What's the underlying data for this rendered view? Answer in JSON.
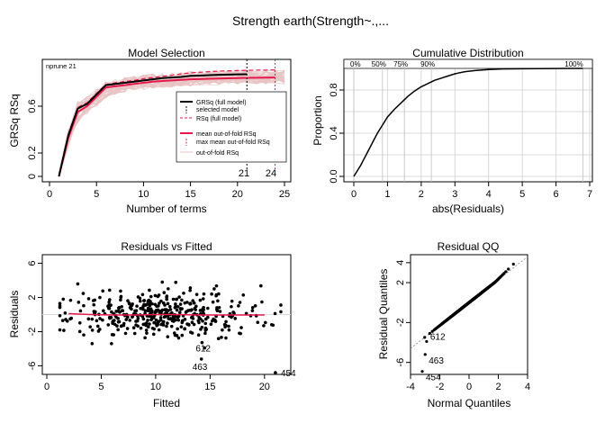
{
  "figure": {
    "main_title": "Strength     earth(Strength~.,..."
  },
  "colors": {
    "pink_band": "#e8c4c4",
    "red": "#e6194b",
    "grid": "#d9d9d9",
    "black": "#000000"
  },
  "chart_data": [
    {
      "type": "line",
      "id": "model-selection",
      "title": "Model Selection",
      "xlabel": "Number of terms",
      "ylabel": "GRSq   RSq",
      "xlim": [
        0,
        25
      ],
      "ylim": [
        0,
        1
      ],
      "xticks": [
        0,
        5,
        10,
        15,
        20,
        25
      ],
      "yticks": [
        0,
        0.2,
        0.6
      ],
      "ytick_labels": [
        "0",
        "0.2",
        "0.6"
      ],
      "annotation": "nprune 21",
      "selected_terms": 21,
      "max_oof_terms": 24,
      "selected_label": "21",
      "max_oof_label": "24",
      "legend": {
        "entries": [
          "GRSq (full model)",
          "selected model",
          "RSq (full model)",
          "mean out-of-fold RSq",
          "max mean out-of-fold RSq",
          "out-of-fold RSq"
        ],
        "placement": "center-right"
      },
      "series": [
        {
          "name": "GRSq (full model)",
          "x": [
            1,
            2,
            3,
            4,
            5,
            6,
            7,
            8,
            9,
            10,
            11,
            12,
            13,
            14,
            15,
            16,
            17,
            18,
            19,
            20,
            21
          ],
          "values": [
            0.0,
            0.35,
            0.58,
            0.62,
            0.7,
            0.78,
            0.79,
            0.8,
            0.81,
            0.82,
            0.83,
            0.84,
            0.845,
            0.85,
            0.86,
            0.862,
            0.865,
            0.868,
            0.87,
            0.872,
            0.873
          ]
        },
        {
          "name": "RSq (full model)",
          "x": [
            1,
            2,
            3,
            4,
            5,
            6,
            7,
            8,
            9,
            10,
            11,
            12,
            13,
            14,
            15,
            16,
            17,
            18,
            19,
            20,
            21,
            22,
            23,
            24
          ],
          "values": [
            0.0,
            0.36,
            0.59,
            0.63,
            0.71,
            0.785,
            0.8,
            0.81,
            0.82,
            0.835,
            0.845,
            0.855,
            0.865,
            0.875,
            0.885,
            0.89,
            0.895,
            0.9,
            0.902,
            0.905,
            0.907,
            0.908,
            0.909,
            0.91
          ]
        },
        {
          "name": "mean out-of-fold RSq",
          "x": [
            1,
            2,
            3,
            4,
            5,
            6,
            7,
            8,
            9,
            10,
            11,
            12,
            13,
            14,
            15,
            16,
            17,
            18,
            19,
            20,
            21,
            22,
            23,
            24
          ],
          "values": [
            0.0,
            0.33,
            0.55,
            0.6,
            0.68,
            0.76,
            0.77,
            0.78,
            0.79,
            0.8,
            0.81,
            0.815,
            0.82,
            0.825,
            0.83,
            0.832,
            0.835,
            0.837,
            0.838,
            0.84,
            0.842,
            0.843,
            0.844,
            0.845
          ]
        }
      ],
      "band": {
        "name": "out-of-fold RSq",
        "x": [
          1,
          2,
          3,
          4,
          5,
          6,
          7,
          8,
          9,
          10,
          11,
          12,
          13,
          14,
          15,
          16,
          17,
          18,
          19,
          20,
          21,
          22,
          23,
          24,
          25
        ],
        "lower": [
          -0.02,
          0.2,
          0.4,
          0.48,
          0.55,
          0.62,
          0.66,
          0.68,
          0.69,
          0.7,
          0.71,
          0.72,
          0.72,
          0.73,
          0.73,
          0.74,
          0.74,
          0.74,
          0.75,
          0.75,
          0.75,
          0.75,
          0.75,
          0.75,
          0.75
        ],
        "upper": [
          0.05,
          0.45,
          0.7,
          0.74,
          0.8,
          0.86,
          0.88,
          0.89,
          0.9,
          0.91,
          0.92,
          0.925,
          0.93,
          0.935,
          0.94,
          0.94,
          0.945,
          0.945,
          0.95,
          0.95,
          0.95,
          0.95,
          0.95,
          0.95,
          0.95
        ]
      }
    },
    {
      "type": "line",
      "id": "cumulative-distribution",
      "title": "Cumulative Distribution",
      "xlabel": "abs(Residuals)",
      "ylabel": "Proportion",
      "xlim": [
        0,
        7
      ],
      "ylim": [
        0,
        1
      ],
      "xticks": [
        0,
        1,
        2,
        3,
        4,
        5,
        6,
        7
      ],
      "yticks": [
        0,
        0.4,
        0.8
      ],
      "ytick_labels": [
        "0.0",
        "0.4",
        "0.8"
      ],
      "percentile_labels": [
        "0%",
        "50%",
        "75%",
        "90%",
        "100%"
      ],
      "percentile_values": [
        0,
        0.85,
        1.5,
        2.3,
        6.8
      ],
      "x": [
        0,
        0.1,
        0.2,
        0.3,
        0.4,
        0.5,
        0.6,
        0.7,
        0.8,
        0.9,
        1.0,
        1.2,
        1.4,
        1.6,
        1.8,
        2.0,
        2.2,
        2.4,
        2.6,
        2.8,
        3.0,
        3.3,
        3.6,
        4.0,
        4.4,
        5.0,
        5.5,
        6.0,
        6.8
      ],
      "values": [
        0,
        0.05,
        0.1,
        0.16,
        0.22,
        0.28,
        0.34,
        0.4,
        0.45,
        0.5,
        0.55,
        0.62,
        0.68,
        0.74,
        0.79,
        0.83,
        0.86,
        0.89,
        0.91,
        0.93,
        0.95,
        0.97,
        0.98,
        0.99,
        0.995,
        0.997,
        0.998,
        0.999,
        1.0
      ]
    },
    {
      "type": "scatter",
      "id": "residuals-vs-fitted",
      "title": "Residuals vs Fitted",
      "xlabel": "Fitted",
      "ylabel": "Residuals",
      "xlim": [
        0,
        22
      ],
      "ylim": [
        -7,
        7
      ],
      "xticks": [
        0,
        5,
        10,
        15,
        20
      ],
      "yticks": [
        -6,
        -2,
        2,
        6
      ],
      "n_points": 420,
      "labeled_points": [
        {
          "label": "612",
          "x": 14.5,
          "y": -3.9
        },
        {
          "label": "463",
          "x": 14.2,
          "y": -5.2
        },
        {
          "label": "454",
          "x": 21.0,
          "y": -6.8
        }
      ],
      "smooth_y": [
        0.1,
        0.0,
        -0.05,
        -0.05,
        0.0,
        0.0,
        -0.05,
        -0.05,
        -0.05,
        -0.05
      ],
      "smooth_x": [
        2,
        4,
        6,
        8,
        10,
        12,
        14,
        16,
        18,
        20
      ]
    },
    {
      "type": "scatter",
      "id": "residual-qq",
      "title": "Residual QQ",
      "xlabel": "Normal Quantiles",
      "ylabel": "Residual Quantiles",
      "xlim": [
        -4,
        4
      ],
      "ylim": [
        -7.2,
        4.8
      ],
      "xticks": [
        -4,
        -2,
        0,
        2,
        4
      ],
      "yticks": [
        -6,
        -2,
        2,
        4
      ],
      "n_points": 420,
      "labeled_points": [
        {
          "label": "612",
          "x": -2.9,
          "y": -3.9
        },
        {
          "label": "463",
          "x": -3.0,
          "y": -5.2
        },
        {
          "label": "454",
          "x": -3.2,
          "y": -6.9
        }
      ]
    }
  ]
}
